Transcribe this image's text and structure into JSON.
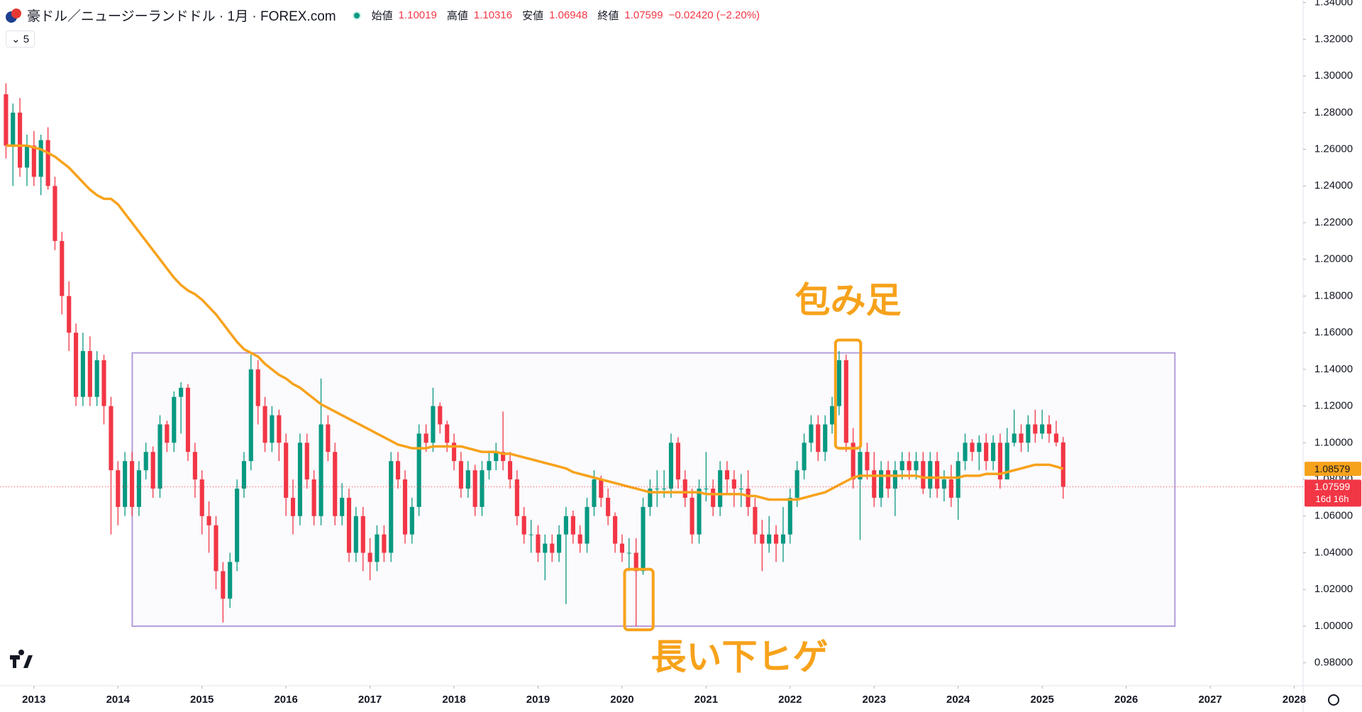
{
  "chart_data": {
    "type": "candlestick",
    "title": "豪ドル／ニュージーランドドル · 1月 · FOREX.com",
    "indicator_label": "5",
    "ohlc_labels": {
      "open": "始値",
      "high": "高値",
      "low": "安値",
      "close": "終値"
    },
    "change": "−0.02420 (−2.20%)",
    "countdown": "16d 16h",
    "up_color": "#089981",
    "down_color": "#f23645",
    "ma_color": "#f7a21b",
    "xlim": [
      2012.596,
      2028.106
    ],
    "xticks": [
      2013,
      2014,
      2015,
      2016,
      2017,
      2018,
      2019,
      2020,
      2021,
      2022,
      2023,
      2024,
      2025,
      2026,
      2027,
      2028
    ],
    "ylim": [
      0.9675,
      1.3414
    ],
    "yticks": [
      {
        "value": 0.98,
        "label": "0.98000"
      },
      {
        "value": 1.0,
        "label": "1.00000"
      },
      {
        "value": 1.02,
        "label": "1.02000"
      },
      {
        "value": 1.04,
        "label": "1.04000"
      },
      {
        "value": 1.06,
        "label": "1.06000"
      },
      {
        "value": 1.08,
        "label": "1.08000"
      },
      {
        "value": 1.1,
        "label": "1.10000"
      },
      {
        "value": 1.12,
        "label": "1.12000"
      },
      {
        "value": 1.14,
        "label": "1.14000"
      },
      {
        "value": 1.16,
        "label": "1.16000"
      },
      {
        "value": 1.18,
        "label": "1.18000"
      },
      {
        "value": 1.2,
        "label": "1.20000"
      },
      {
        "value": 1.22,
        "label": "1.22000"
      },
      {
        "value": 1.24,
        "label": "1.24000"
      },
      {
        "value": 1.26,
        "label": "1.26000"
      },
      {
        "value": 1.28,
        "label": "1.28000"
      },
      {
        "value": 1.3,
        "label": "1.30000"
      },
      {
        "value": 1.32,
        "label": "1.32000"
      },
      {
        "value": 1.34,
        "label": "1.34000"
      }
    ],
    "grid": false,
    "x": [
      2012.667,
      2012.75,
      2012.833,
      2012.917,
      2013,
      2013.083,
      2013.167,
      2013.25,
      2013.333,
      2013.417,
      2013.5,
      2013.583,
      2013.667,
      2013.75,
      2013.833,
      2013.917,
      2014,
      2014.083,
      2014.167,
      2014.25,
      2014.333,
      2014.417,
      2014.5,
      2014.583,
      2014.667,
      2014.75,
      2014.833,
      2014.917,
      2015,
      2015.083,
      2015.167,
      2015.25,
      2015.333,
      2015.417,
      2015.5,
      2015.583,
      2015.667,
      2015.75,
      2015.833,
      2015.917,
      2016,
      2016.083,
      2016.167,
      2016.25,
      2016.333,
      2016.417,
      2016.5,
      2016.583,
      2016.667,
      2016.75,
      2016.833,
      2016.917,
      2017,
      2017.083,
      2017.167,
      2017.25,
      2017.333,
      2017.417,
      2017.5,
      2017.583,
      2017.667,
      2017.75,
      2017.833,
      2017.917,
      2018,
      2018.083,
      2018.167,
      2018.25,
      2018.333,
      2018.417,
      2018.5,
      2018.583,
      2018.667,
      2018.75,
      2018.833,
      2018.917,
      2019,
      2019.083,
      2019.167,
      2019.25,
      2019.333,
      2019.417,
      2019.5,
      2019.583,
      2019.667,
      2019.75,
      2019.833,
      2019.917,
      2020,
      2020.083,
      2020.167,
      2020.25,
      2020.333,
      2020.417,
      2020.5,
      2020.583,
      2020.667,
      2020.75,
      2020.833,
      2020.917,
      2021,
      2021.083,
      2021.167,
      2021.25,
      2021.333,
      2021.417,
      2021.5,
      2021.583,
      2021.667,
      2021.75,
      2021.833,
      2021.917,
      2022,
      2022.083,
      2022.167,
      2022.25,
      2022.333,
      2022.417,
      2022.5,
      2022.583,
      2022.667,
      2022.75,
      2022.833,
      2022.917,
      2023,
      2023.083,
      2023.167,
      2023.25,
      2023.333,
      2023.417,
      2023.5,
      2023.583,
      2023.667,
      2023.75,
      2023.833,
      2023.917,
      2024,
      2024.083,
      2024.167,
      2024.25,
      2024.333,
      2024.417,
      2024.5,
      2024.583,
      2024.667,
      2024.75,
      2024.833,
      2024.917,
      2025,
      2025.083,
      2025.167,
      2025.25
    ],
    "open": [
      1.29,
      1.262,
      1.28,
      1.25,
      1.262,
      1.245,
      1.265,
      1.24,
      1.21,
      1.18,
      1.16,
      1.125,
      1.15,
      1.125,
      1.145,
      1.12,
      1.085,
      1.065,
      1.09,
      1.065,
      1.085,
      1.095,
      1.075,
      1.11,
      1.1,
      1.125,
      1.13,
      1.095,
      1.08,
      1.06,
      1.055,
      1.03,
      1.015,
      1.035,
      1.075,
      1.09,
      1.14,
      1.12,
      1.1,
      1.115,
      1.1,
      1.07,
      1.06,
      1.1,
      1.08,
      1.06,
      1.11,
      1.095,
      1.06,
      1.07,
      1.04,
      1.06,
      1.04,
      1.035,
      1.05,
      1.04,
      1.09,
      1.08,
      1.05,
      1.065,
      1.105,
      1.1,
      1.12,
      1.11,
      1.1,
      1.09,
      1.075,
      1.085,
      1.065,
      1.085,
      1.09,
      1.095,
      1.09,
      1.08,
      1.06,
      1.05,
      1.05,
      1.04,
      1.045,
      1.04,
      1.05,
      1.06,
      1.05,
      1.045,
      1.065,
      1.08,
      1.07,
      1.06,
      1.045,
      1.04,
      1.04,
      1.03,
      1.065,
      1.075,
      1.075,
      1.075,
      1.1,
      1.08,
      1.07,
      1.05,
      1.075,
      1.075,
      1.065,
      1.085,
      1.08,
      1.075,
      1.075,
      1.065,
      1.05,
      1.045,
      1.05,
      1.045,
      1.05,
      1.07,
      1.085,
      1.1,
      1.11,
      1.095,
      1.11,
      1.12,
      1.145,
      1.1,
      1.08,
      1.095,
      1.085,
      1.07,
      1.085,
      1.075,
      1.085,
      1.09,
      1.085,
      1.09,
      1.075,
      1.09,
      1.075,
      1.08,
      1.07,
      1.09,
      1.1,
      1.095,
      1.1,
      1.09,
      1.1,
      1.08,
      1.1,
      1.105,
      1.1,
      1.11,
      1.105,
      1.11,
      1.105,
      1.10019
    ],
    "high": [
      1.296,
      1.285,
      1.288,
      1.268,
      1.27,
      1.268,
      1.272,
      1.245,
      1.215,
      1.188,
      1.165,
      1.16,
      1.158,
      1.15,
      1.148,
      1.125,
      1.09,
      1.095,
      1.095,
      1.09,
      1.1,
      1.098,
      1.115,
      1.112,
      1.128,
      1.133,
      1.132,
      1.1,
      1.085,
      1.068,
      1.06,
      1.035,
      1.04,
      1.08,
      1.095,
      1.148,
      1.145,
      1.125,
      1.12,
      1.118,
      1.105,
      1.08,
      1.105,
      1.105,
      1.085,
      1.135,
      1.115,
      1.1,
      1.078,
      1.075,
      1.065,
      1.065,
      1.048,
      1.055,
      1.055,
      1.095,
      1.095,
      1.085,
      1.07,
      1.11,
      1.11,
      1.13,
      1.122,
      1.112,
      1.105,
      1.095,
      1.09,
      1.088,
      1.09,
      1.095,
      1.1,
      1.117,
      1.095,
      1.085,
      1.065,
      1.058,
      1.055,
      1.05,
      1.05,
      1.055,
      1.065,
      1.063,
      1.055,
      1.07,
      1.085,
      1.082,
      1.075,
      1.062,
      1.05,
      1.048,
      1.048,
      1.07,
      1.08,
      1.085,
      1.085,
      1.105,
      1.103,
      1.085,
      1.075,
      1.08,
      1.095,
      1.08,
      1.09,
      1.09,
      1.085,
      1.083,
      1.085,
      1.07,
      1.058,
      1.06,
      1.055,
      1.065,
      1.075,
      1.09,
      1.105,
      1.115,
      1.115,
      1.115,
      1.125,
      1.15,
      1.148,
      1.108,
      1.098,
      1.1,
      1.095,
      1.09,
      1.09,
      1.09,
      1.095,
      1.095,
      1.095,
      1.095,
      1.095,
      1.095,
      1.085,
      1.088,
      1.095,
      1.105,
      1.102,
      1.104,
      1.105,
      1.104,
      1.105,
      1.108,
      1.118,
      1.11,
      1.115,
      1.118,
      1.118,
      1.115,
      1.112,
      1.10316
    ],
    "low": [
      1.255,
      1.24,
      1.245,
      1.24,
      1.24,
      1.235,
      1.238,
      1.205,
      1.17,
      1.15,
      1.12,
      1.12,
      1.12,
      1.12,
      1.11,
      1.05,
      1.055,
      1.06,
      1.06,
      1.06,
      1.08,
      1.07,
      1.07,
      1.095,
      1.095,
      1.105,
      1.09,
      1.07,
      1.05,
      1.04,
      1.02,
      1.002,
      1.01,
      1.03,
      1.07,
      1.085,
      1.11,
      1.095,
      1.095,
      1.09,
      1.06,
      1.05,
      1.055,
      1.075,
      1.055,
      1.055,
      1.09,
      1.055,
      1.055,
      1.035,
      1.035,
      1.03,
      1.025,
      1.03,
      1.035,
      1.035,
      1.075,
      1.045,
      1.045,
      1.06,
      1.095,
      1.095,
      1.105,
      1.095,
      1.085,
      1.07,
      1.07,
      1.06,
      1.06,
      1.08,
      1.085,
      1.085,
      1.075,
      1.055,
      1.045,
      1.04,
      1.035,
      1.025,
      1.035,
      1.035,
      1.012,
      1.045,
      1.04,
      1.04,
      1.06,
      1.065,
      1.055,
      1.04,
      1.035,
      1.03,
      1.0,
      1.028,
      1.06,
      1.065,
      1.07,
      1.07,
      1.075,
      1.065,
      1.045,
      1.045,
      1.068,
      1.06,
      1.06,
      1.072,
      1.065,
      1.065,
      1.06,
      1.045,
      1.03,
      1.04,
      1.035,
      1.035,
      1.045,
      1.065,
      1.08,
      1.095,
      1.09,
      1.09,
      1.105,
      1.115,
      1.095,
      1.075,
      1.047,
      1.08,
      1.065,
      1.065,
      1.07,
      1.06,
      1.08,
      1.08,
      1.08,
      1.072,
      1.07,
      1.07,
      1.068,
      1.065,
      1.058,
      1.085,
      1.09,
      1.085,
      1.085,
      1.085,
      1.075,
      1.08,
      1.098,
      1.095,
      1.095,
      1.1,
      1.102,
      1.1,
      1.098,
      1.06948
    ],
    "close": [
      1.262,
      1.28,
      1.25,
      1.262,
      1.245,
      1.265,
      1.24,
      1.21,
      1.18,
      1.16,
      1.125,
      1.15,
      1.125,
      1.145,
      1.12,
      1.085,
      1.065,
      1.09,
      1.065,
      1.085,
      1.095,
      1.075,
      1.11,
      1.1,
      1.125,
      1.13,
      1.095,
      1.08,
      1.06,
      1.055,
      1.03,
      1.015,
      1.035,
      1.075,
      1.09,
      1.14,
      1.12,
      1.1,
      1.115,
      1.1,
      1.07,
      1.06,
      1.1,
      1.08,
      1.06,
      1.11,
      1.095,
      1.06,
      1.07,
      1.04,
      1.06,
      1.04,
      1.035,
      1.05,
      1.04,
      1.09,
      1.08,
      1.05,
      1.065,
      1.105,
      1.1,
      1.12,
      1.11,
      1.1,
      1.09,
      1.075,
      1.085,
      1.065,
      1.085,
      1.09,
      1.095,
      1.09,
      1.08,
      1.06,
      1.05,
      1.05,
      1.04,
      1.045,
      1.04,
      1.05,
      1.06,
      1.05,
      1.045,
      1.065,
      1.08,
      1.07,
      1.06,
      1.045,
      1.04,
      1.04,
      1.03,
      1.065,
      1.075,
      1.075,
      1.075,
      1.1,
      1.08,
      1.07,
      1.05,
      1.075,
      1.075,
      1.065,
      1.085,
      1.08,
      1.075,
      1.075,
      1.065,
      1.05,
      1.045,
      1.05,
      1.045,
      1.05,
      1.07,
      1.085,
      1.1,
      1.11,
      1.095,
      1.11,
      1.12,
      1.145,
      1.1,
      1.08,
      1.095,
      1.085,
      1.07,
      1.085,
      1.075,
      1.085,
      1.09,
      1.085,
      1.09,
      1.075,
      1.09,
      1.075,
      1.08,
      1.07,
      1.09,
      1.1,
      1.095,
      1.1,
      1.09,
      1.1,
      1.08,
      1.1,
      1.105,
      1.1,
      1.11,
      1.105,
      1.11,
      1.105,
      1.10019,
      1.07599
    ],
    "ma": [
      1.262,
      1.262,
      1.262,
      1.262,
      1.261,
      1.26,
      1.258,
      1.256,
      1.253,
      1.25,
      1.246,
      1.242,
      1.238,
      1.235,
      1.233,
      1.233,
      1.23,
      1.225,
      1.22,
      1.215,
      1.21,
      1.205,
      1.2,
      1.195,
      1.19,
      1.186,
      1.183,
      1.181,
      1.178,
      1.174,
      1.17,
      1.165,
      1.16,
      1.155,
      1.151,
      1.149,
      1.147,
      1.143,
      1.14,
      1.137,
      1.135,
      1.132,
      1.13,
      1.127,
      1.124,
      1.121,
      1.119,
      1.117,
      1.115,
      1.113,
      1.111,
      1.109,
      1.107,
      1.105,
      1.103,
      1.101,
      1.099,
      1.098,
      1.097,
      1.097,
      1.097,
      1.098,
      1.098,
      1.098,
      1.098,
      1.098,
      1.097,
      1.096,
      1.095,
      1.095,
      1.095,
      1.094,
      1.094,
      1.093,
      1.092,
      1.091,
      1.09,
      1.089,
      1.088,
      1.087,
      1.086,
      1.084,
      1.083,
      1.082,
      1.081,
      1.08,
      1.079,
      1.078,
      1.077,
      1.076,
      1.075,
      1.074,
      1.073,
      1.073,
      1.073,
      1.073,
      1.073,
      1.073,
      1.073,
      1.073,
      1.072,
      1.072,
      1.072,
      1.072,
      1.072,
      1.072,
      1.071,
      1.071,
      1.07,
      1.069,
      1.069,
      1.069,
      1.069,
      1.069,
      1.07,
      1.071,
      1.072,
      1.073,
      1.075,
      1.077,
      1.079,
      1.081,
      1.082,
      1.082,
      1.082,
      1.082,
      1.082,
      1.082,
      1.082,
      1.082,
      1.082,
      1.081,
      1.081,
      1.081,
      1.081,
      1.081,
      1.081,
      1.082,
      1.082,
      1.082,
      1.083,
      1.083,
      1.083,
      1.084,
      1.085,
      1.086,
      1.087,
      1.088,
      1.088,
      1.088,
      1.087,
      1.08579
    ],
    "range_box": {
      "x": [
        2014.17,
        2026.58
      ],
      "y": [
        1.0,
        1.149
      ]
    },
    "annotations": [
      {
        "text": "包み足",
        "x": [
          2022.54,
          2022.84
        ],
        "y": [
          1.097,
          1.156
        ]
      },
      {
        "text": "長い下ヒゲ",
        "x": [
          2020.03,
          2020.37
        ],
        "y": [
          0.998,
          1.031
        ]
      }
    ]
  }
}
